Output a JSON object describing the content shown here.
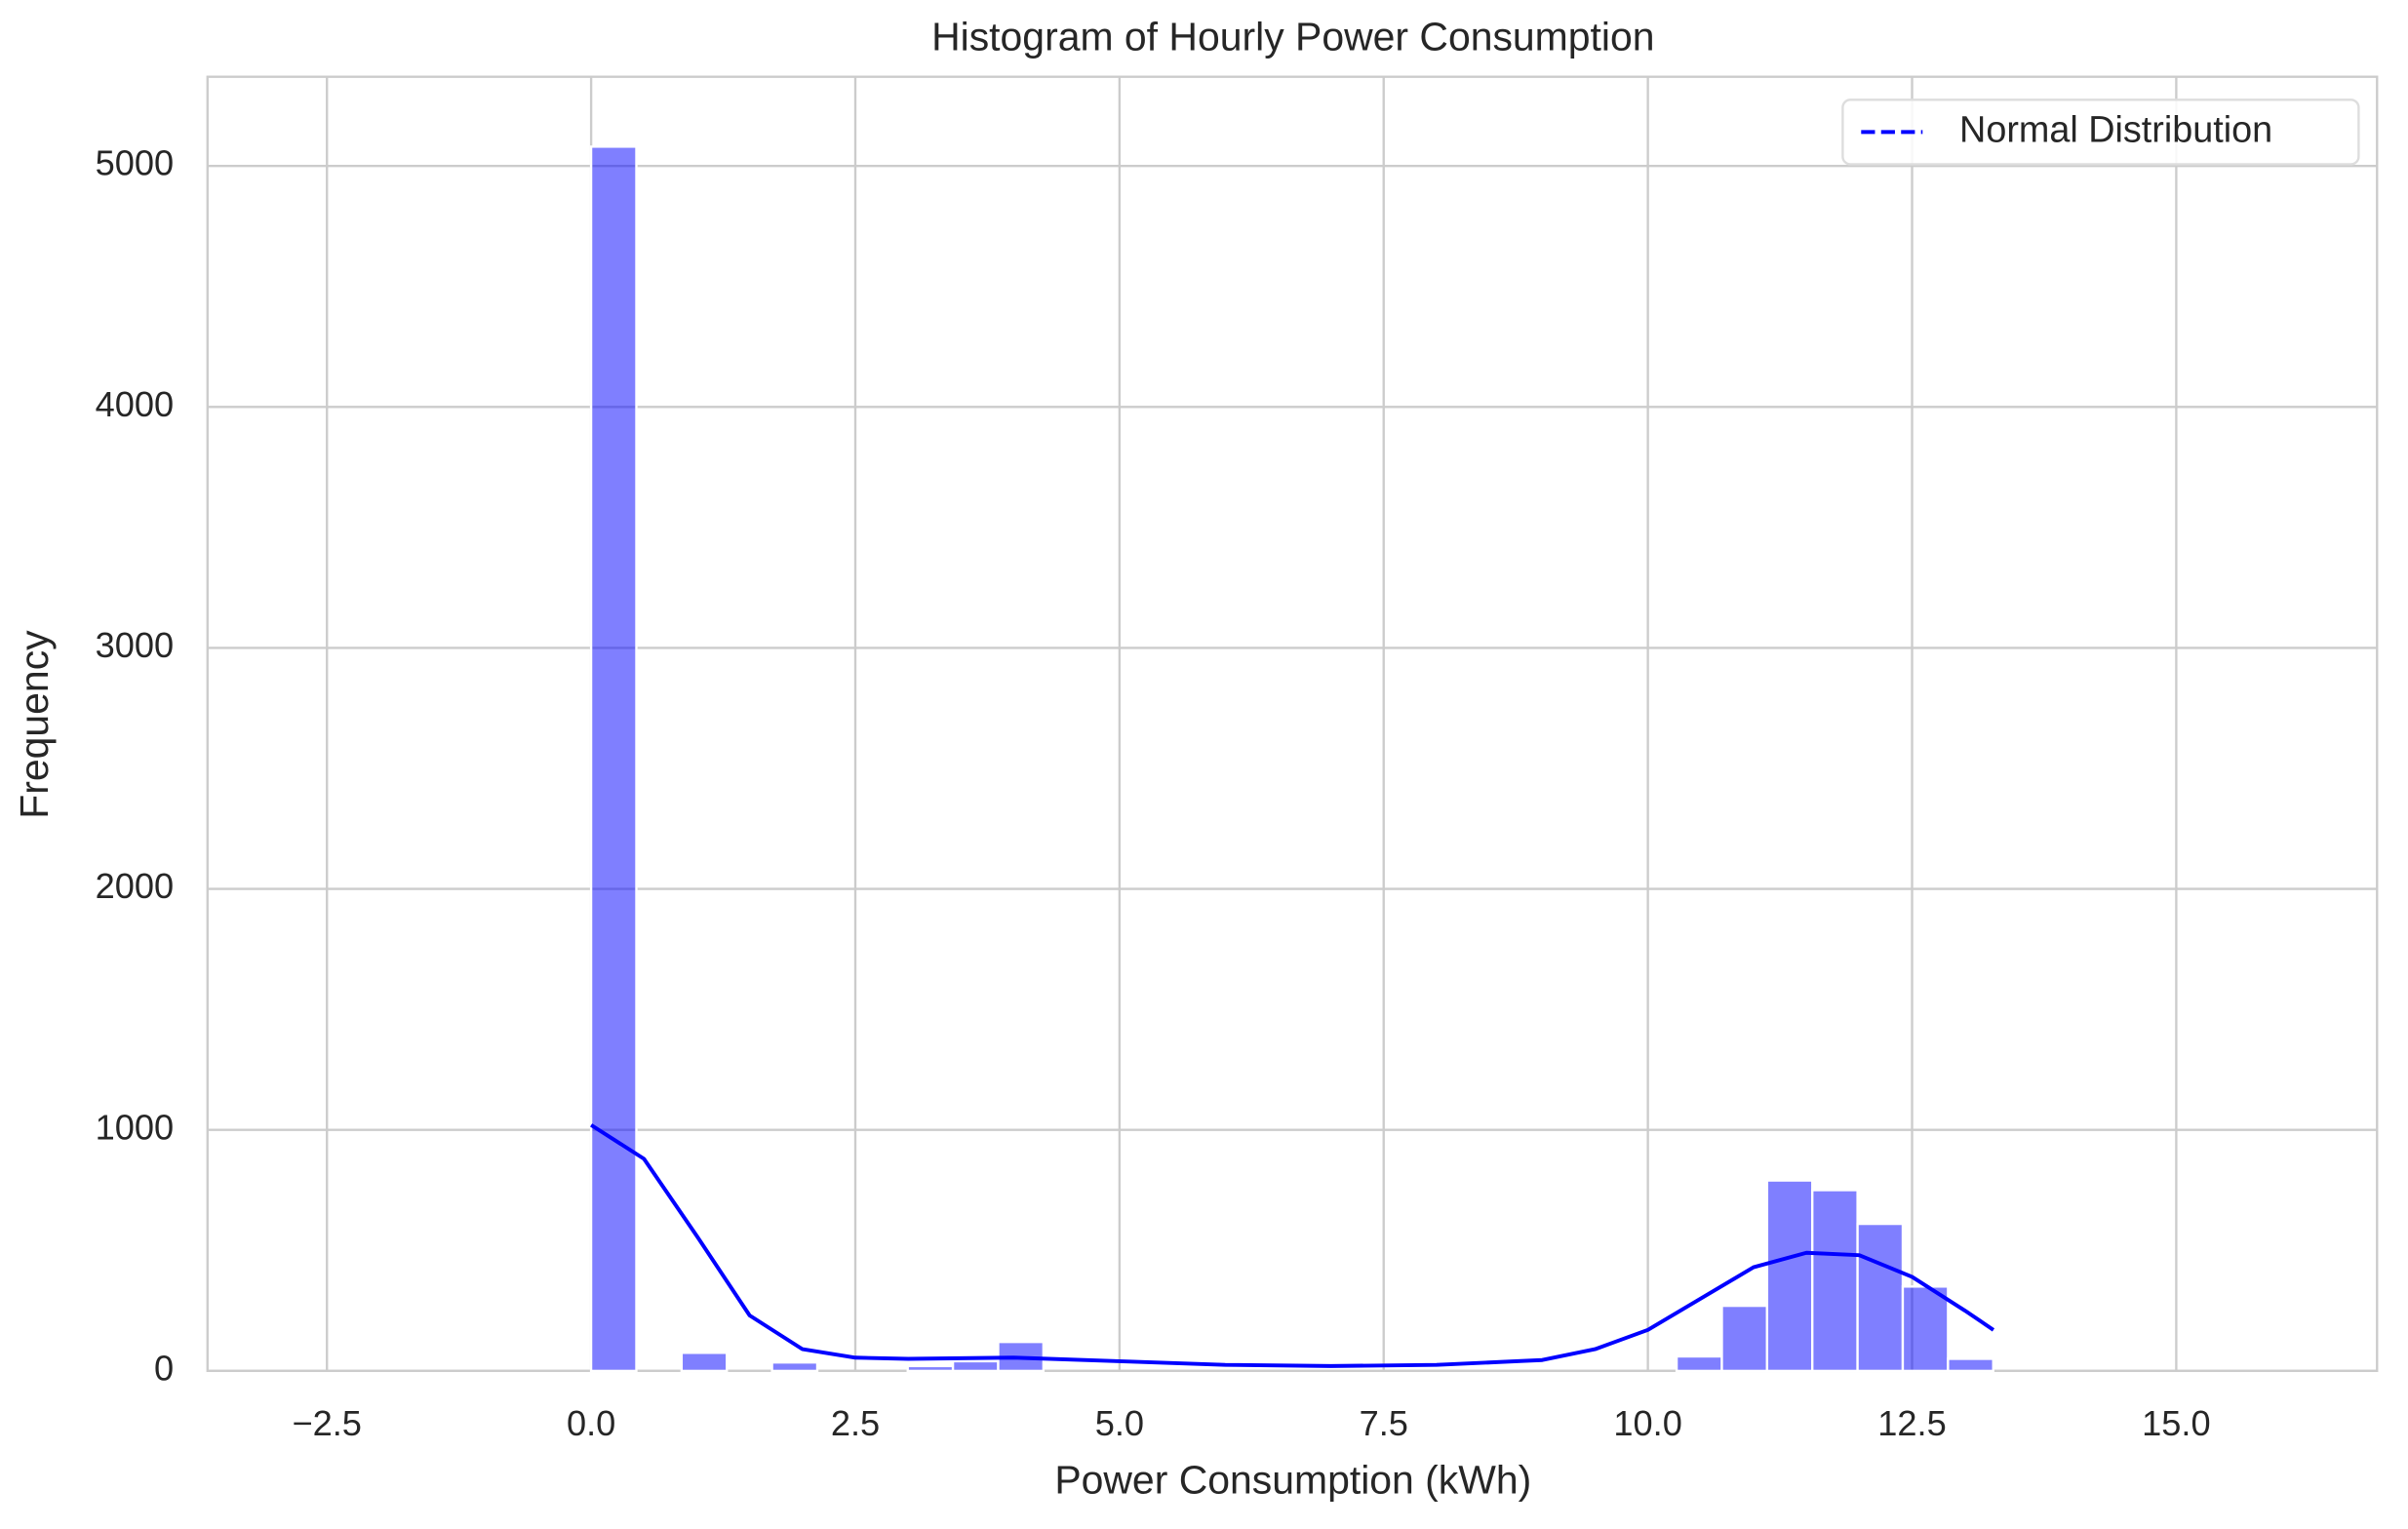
{
  "chart_data": {
    "type": "histogram",
    "title": "Histogram of Hourly Power Consumption",
    "xlabel": "Power Consumption (kWh)",
    "ylabel": "Frequency",
    "bins": [
      0,
      0.428,
      0.856,
      1.284,
      1.712,
      2.14,
      2.568,
      2.996,
      3.424,
      3.852,
      4.28,
      4.708,
      5.136,
      5.564,
      5.992,
      6.42,
      6.848,
      7.276,
      7.704,
      8.132,
      8.56,
      8.988,
      9.416,
      9.844,
      10.272,
      10.7,
      11.128,
      11.556,
      11.984,
      12.412,
      12.84,
      13.268
    ],
    "counts": [
      5080,
      0,
      75,
      0,
      35,
      0,
      0,
      20,
      40,
      120,
      0,
      0,
      0,
      0,
      0,
      0,
      0,
      0,
      0,
      0,
      0,
      0,
      0,
      0,
      60,
      270,
      790,
      750,
      610,
      350,
      50
    ],
    "color": "#0000ff",
    "alpha": 0.5,
    "series": [
      {
        "name": "Normal Distribution",
        "color": "#0000ff",
        "x": [
          0,
          0.5,
          1,
          1.5,
          2,
          2.5,
          3,
          4,
          5,
          6,
          7,
          8,
          9,
          9.5,
          10,
          10.5,
          11,
          11.5,
          12,
          12.5,
          13,
          13.27
        ],
        "values": [
          1020,
          880,
          560,
          230,
          90,
          55,
          50,
          55,
          40,
          25,
          20,
          25,
          45,
          90,
          170,
          300,
          430,
          490,
          480,
          390,
          250,
          170
        ]
      }
    ],
    "legend": "upper right",
    "legend_linestyle": "dashed",
    "grid": true,
    "xlim": [
      -3.63,
      16.9
    ],
    "ylim": [
      0,
      5370
    ],
    "xticks": [
      {
        "value": -2.5,
        "label": "−2.5"
      },
      {
        "value": 0,
        "label": "0.0"
      },
      2.5,
      {
        "value": 5,
        "label": "5.0"
      },
      7.5,
      {
        "value": 10,
        "label": "10.0"
      },
      12.5,
      {
        "value": 15,
        "label": "15.0"
      }
    ],
    "yticks": [
      0,
      1000,
      2000,
      3000,
      4000,
      5000
    ]
  }
}
